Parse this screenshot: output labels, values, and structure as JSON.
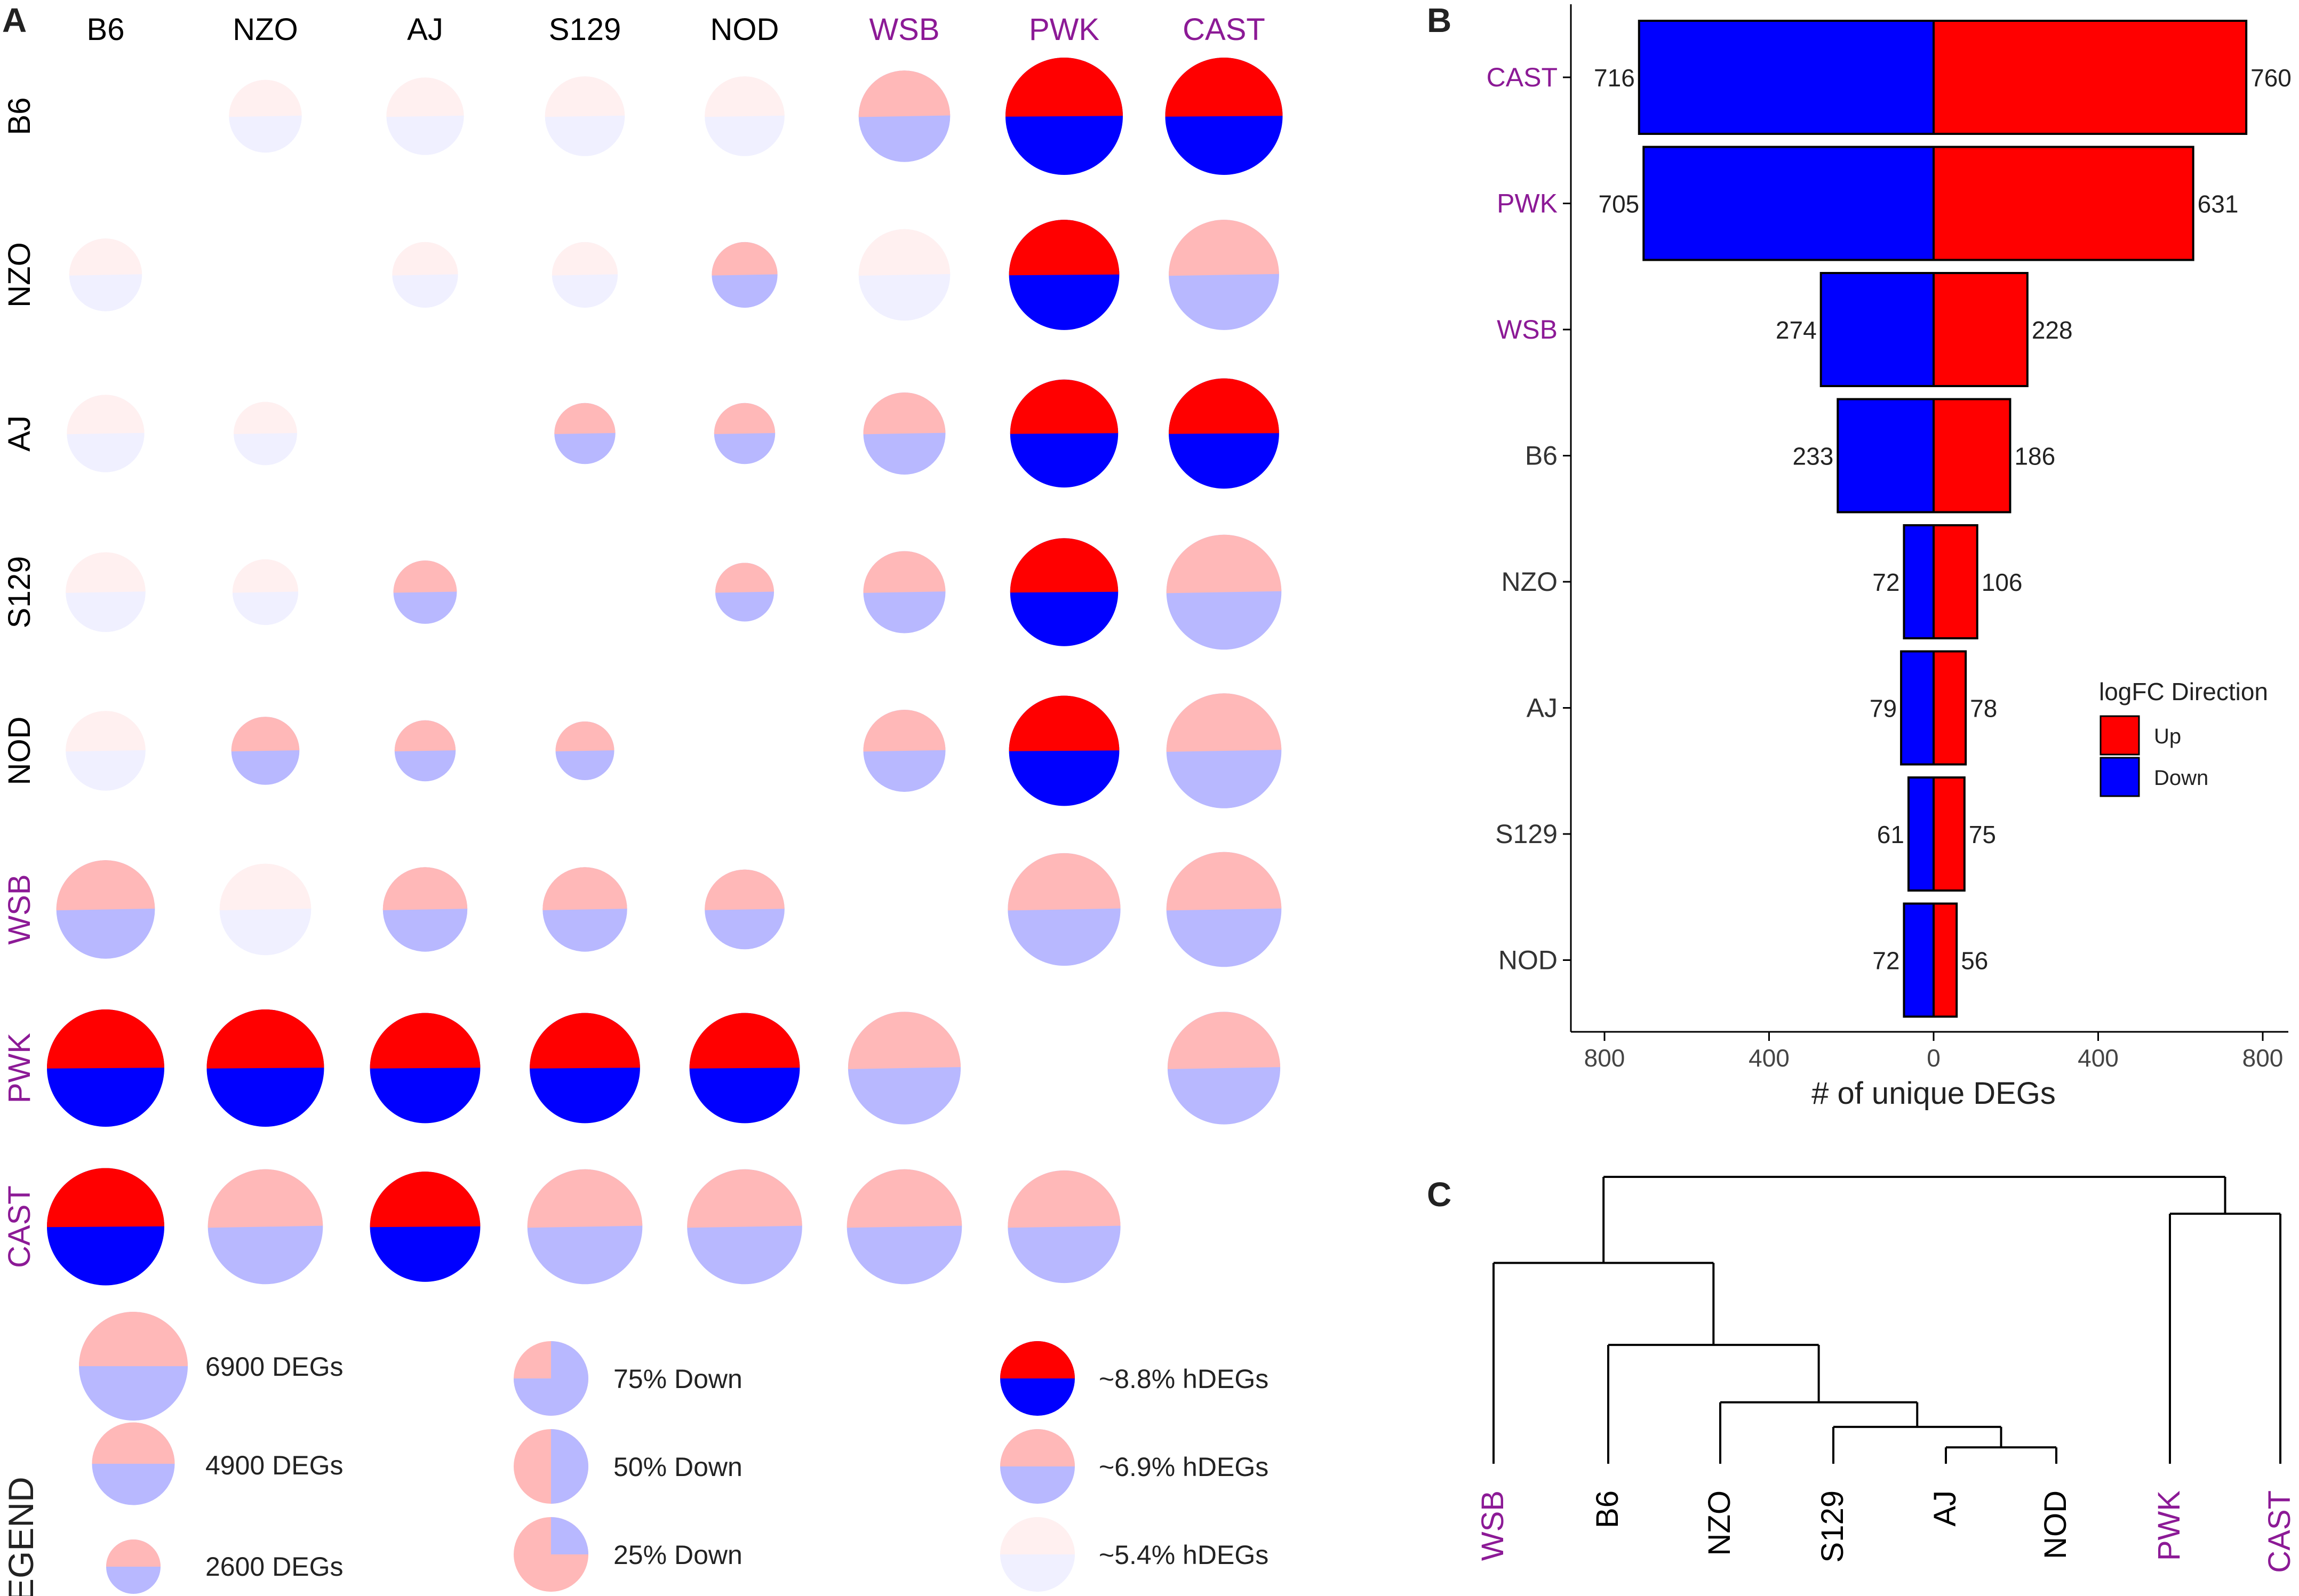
{
  "panels": {
    "a": "A",
    "b": "B",
    "c": "C"
  },
  "colors": {
    "up": "#ff0000",
    "down": "#0000ff",
    "purple": "#8c1a96",
    "black": "#000000"
  },
  "strains": [
    {
      "name": "B6",
      "wild": false
    },
    {
      "name": "NZO",
      "wild": false
    },
    {
      "name": "AJ",
      "wild": false
    },
    {
      "name": "S129",
      "wild": false
    },
    {
      "name": "NOD",
      "wild": false
    },
    {
      "name": "WSB",
      "wild": true
    },
    {
      "name": "PWK",
      "wild": true
    },
    {
      "name": "CAST",
      "wild": true
    }
  ],
  "matrix": {
    "note": "row i, col j: [relative size 0-1 of 6900 DEG scale, alpha intensity 0-1, up-share]",
    "cells": [
      [
        null,
        [
          0.62,
          0.06,
          0.45
        ],
        [
          0.66,
          0.06,
          0.45
        ],
        [
          0.68,
          0.06,
          0.45
        ],
        [
          0.68,
          0.06,
          0.45
        ],
        [
          0.78,
          0.28,
          0.45
        ],
        [
          1.0,
          1.0,
          0.48
        ],
        [
          1.0,
          1.0,
          0.48
        ]
      ],
      [
        [
          0.62,
          0.06,
          0.45
        ],
        null,
        [
          0.56,
          0.06,
          0.45
        ],
        [
          0.56,
          0.06,
          0.45
        ],
        [
          0.56,
          0.28,
          0.45
        ],
        [
          0.78,
          0.06,
          0.45
        ],
        [
          0.94,
          1.0,
          0.48
        ],
        [
          0.94,
          0.28,
          0.45
        ]
      ],
      [
        [
          0.66,
          0.06,
          0.45
        ],
        [
          0.54,
          0.06,
          0.45
        ],
        null,
        [
          0.52,
          0.28,
          0.45
        ],
        [
          0.52,
          0.28,
          0.45
        ],
        [
          0.7,
          0.28,
          0.45
        ],
        [
          0.92,
          1.0,
          0.48
        ],
        [
          0.94,
          1.0,
          0.48
        ]
      ],
      [
        [
          0.68,
          0.06,
          0.45
        ],
        [
          0.56,
          0.06,
          0.45
        ],
        [
          0.54,
          0.28,
          0.45
        ],
        null,
        [
          0.5,
          0.28,
          0.45
        ],
        [
          0.7,
          0.28,
          0.45
        ],
        [
          0.92,
          1.0,
          0.48
        ],
        [
          0.98,
          0.28,
          0.45
        ]
      ],
      [
        [
          0.68,
          0.06,
          0.45
        ],
        [
          0.58,
          0.28,
          0.45
        ],
        [
          0.52,
          0.28,
          0.45
        ],
        [
          0.5,
          0.28,
          0.45
        ],
        null,
        [
          0.7,
          0.28,
          0.45
        ],
        [
          0.94,
          1.0,
          0.48
        ],
        [
          0.98,
          0.28,
          0.45
        ]
      ],
      [
        [
          0.84,
          0.28,
          0.45
        ],
        [
          0.78,
          0.06,
          0.45
        ],
        [
          0.72,
          0.28,
          0.45
        ],
        [
          0.72,
          0.28,
          0.45
        ],
        [
          0.68,
          0.28,
          0.45
        ],
        null,
        [
          0.96,
          0.28,
          0.45
        ],
        [
          0.98,
          0.28,
          0.45
        ]
      ],
      [
        [
          1.0,
          1.0,
          0.48
        ],
        [
          1.0,
          1.0,
          0.48
        ],
        [
          0.94,
          1.0,
          0.48
        ],
        [
          0.94,
          1.0,
          0.48
        ],
        [
          0.94,
          1.0,
          0.48
        ],
        [
          0.96,
          0.28,
          0.45
        ],
        null,
        [
          0.96,
          0.28,
          0.45
        ]
      ],
      [
        [
          1.0,
          1.0,
          0.48
        ],
        [
          0.98,
          0.28,
          0.45
        ],
        [
          0.94,
          1.0,
          0.48
        ],
        [
          0.98,
          0.28,
          0.45
        ],
        [
          0.98,
          0.28,
          0.45
        ],
        [
          0.98,
          0.28,
          0.45
        ],
        [
          0.96,
          0.28,
          0.45
        ],
        null
      ]
    ]
  },
  "legend": {
    "title": "LEGEND",
    "sizes": [
      {
        "label": "6900 DEGs",
        "rel": 1.0
      },
      {
        "label": "4900 DEGs",
        "rel": 0.76
      },
      {
        "label": "2600 DEGs",
        "rel": 0.5
      }
    ],
    "directions": [
      {
        "label": "75% Down",
        "down": 0.75
      },
      {
        "label": "50% Down",
        "down": 0.5
      },
      {
        "label": "25% Down",
        "down": 0.25
      }
    ],
    "hdegs": [
      {
        "label": "~8.8% hDEGs",
        "alpha": 1.0
      },
      {
        "label": "~6.9% hDEGs",
        "alpha": 0.28
      },
      {
        "label": "~5.4% hDEGs",
        "alpha": 0.06
      }
    ]
  },
  "chart_data": [
    {
      "type": "bar",
      "title": "",
      "xlabel": "# of unique DEGs",
      "ylabel": "",
      "xlim": [
        -800,
        800
      ],
      "x_tick_values": [
        -800,
        -400,
        0,
        400,
        800
      ],
      "x_tick_labels": [
        "800",
        "400",
        "0",
        "400",
        "800"
      ],
      "categories": [
        "CAST",
        "PWK",
        "WSB",
        "B6",
        "NZO",
        "AJ",
        "S129",
        "NOD"
      ],
      "series": [
        {
          "name": "Down",
          "values": [
            716,
            705,
            274,
            233,
            72,
            79,
            61,
            72
          ]
        },
        {
          "name": "Up",
          "values": [
            760,
            631,
            228,
            186,
            106,
            78,
            75,
            56
          ]
        }
      ],
      "legend": {
        "title": "logFC Direction",
        "entries": [
          "Up",
          "Down"
        ],
        "placement": "right"
      }
    },
    {
      "type": "dendrogram",
      "leaves": [
        "WSB",
        "B6",
        "NZO",
        "S129",
        "AJ",
        "NOD",
        "PWK",
        "CAST"
      ],
      "merges": [
        {
          "a": "AJ",
          "b": "NOD",
          "height": 0.34
        },
        {
          "a": "S129",
          "b": "AJ+NOD",
          "height": 0.39
        },
        {
          "a": "NZO",
          "b": "S129+AJ+NOD",
          "height": 0.45
        },
        {
          "a": "B6",
          "b": "NZO+S129+AJ+NOD",
          "height": 0.59
        },
        {
          "a": "WSB",
          "b": "B6+NZO+S129+AJ+NOD",
          "height": 0.79
        },
        {
          "a": "PWK",
          "b": "CAST",
          "height": 0.91
        },
        {
          "a": "WSB..NOD",
          "b": "PWK+CAST",
          "height": 1.0
        }
      ]
    }
  ]
}
